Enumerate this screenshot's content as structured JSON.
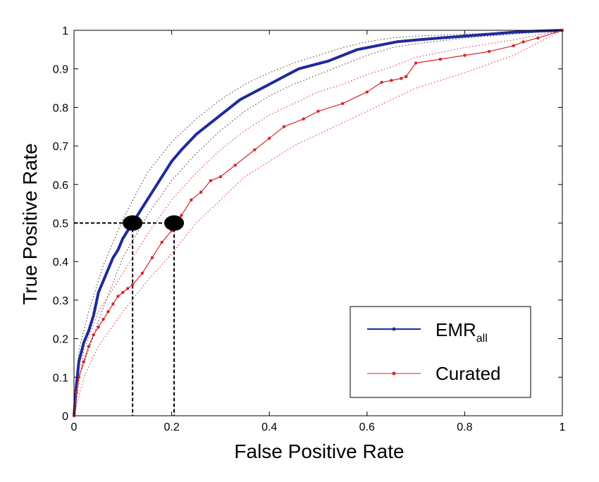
{
  "chart_data": {
    "type": "line",
    "title": "",
    "xlabel": "False Positive Rate",
    "ylabel": "True Positive Rate",
    "xlim": [
      0,
      1
    ],
    "ylim": [
      0,
      1
    ],
    "xticks": [
      "0",
      "0.2",
      "0.4",
      "0.6",
      "0.8",
      "1"
    ],
    "yticks": [
      "0",
      "0.1",
      "0.2",
      "0.3",
      "0.4",
      "0.5",
      "0.6",
      "0.7",
      "0.8",
      "0.9",
      "1"
    ],
    "grid": false,
    "legend_position": "bottom-right",
    "series": [
      {
        "name": "EMR",
        "name_subscript": "all",
        "color": "#1f2a9c",
        "style": "thick-solid",
        "x": [
          0,
          0.005,
          0.01,
          0.02,
          0.03,
          0.04,
          0.05,
          0.06,
          0.07,
          0.08,
          0.09,
          0.1,
          0.11,
          0.12,
          0.14,
          0.16,
          0.18,
          0.2,
          0.22,
          0.25,
          0.28,
          0.31,
          0.34,
          0.37,
          0.4,
          0.43,
          0.46,
          0.49,
          0.52,
          0.55,
          0.58,
          0.62,
          0.66,
          0.7,
          0.75,
          0.8,
          0.85,
          0.9,
          0.95,
          1.0
        ],
        "y": [
          0,
          0.08,
          0.14,
          0.19,
          0.22,
          0.26,
          0.32,
          0.35,
          0.38,
          0.41,
          0.43,
          0.46,
          0.48,
          0.5,
          0.54,
          0.58,
          0.62,
          0.66,
          0.69,
          0.73,
          0.76,
          0.79,
          0.82,
          0.84,
          0.86,
          0.88,
          0.9,
          0.91,
          0.92,
          0.935,
          0.95,
          0.96,
          0.97,
          0.975,
          0.98,
          0.985,
          0.99,
          0.995,
          0.998,
          1.0
        ]
      },
      {
        "name": "Curated",
        "color": "#d7262a",
        "style": "thin-solid-dots",
        "x": [
          0,
          0.005,
          0.01,
          0.02,
          0.03,
          0.04,
          0.05,
          0.06,
          0.07,
          0.08,
          0.09,
          0.1,
          0.11,
          0.12,
          0.14,
          0.16,
          0.18,
          0.2,
          0.21,
          0.22,
          0.24,
          0.26,
          0.28,
          0.3,
          0.33,
          0.37,
          0.4,
          0.43,
          0.47,
          0.5,
          0.55,
          0.6,
          0.63,
          0.65,
          0.67,
          0.68,
          0.7,
          0.75,
          0.8,
          0.85,
          0.9,
          0.92,
          0.95,
          1.0
        ],
        "y": [
          0,
          0.06,
          0.1,
          0.14,
          0.18,
          0.21,
          0.23,
          0.25,
          0.27,
          0.29,
          0.31,
          0.32,
          0.33,
          0.34,
          0.37,
          0.41,
          0.45,
          0.48,
          0.5,
          0.52,
          0.56,
          0.58,
          0.61,
          0.62,
          0.65,
          0.69,
          0.72,
          0.75,
          0.77,
          0.79,
          0.81,
          0.84,
          0.865,
          0.87,
          0.875,
          0.88,
          0.915,
          0.925,
          0.935,
          0.945,
          0.96,
          0.97,
          0.98,
          1.0
        ]
      },
      {
        "role": "confidence-band",
        "of": "EMR",
        "color": "#333333",
        "style": "dotted",
        "x": [
          0,
          0.01,
          0.03,
          0.06,
          0.1,
          0.15,
          0.2,
          0.25,
          0.3,
          0.35,
          0.4,
          0.45,
          0.5,
          0.55,
          0.6,
          0.65,
          0.7,
          0.8,
          0.9,
          1.0
        ],
        "upper": [
          0,
          0.17,
          0.27,
          0.39,
          0.51,
          0.63,
          0.71,
          0.77,
          0.82,
          0.86,
          0.89,
          0.915,
          0.935,
          0.955,
          0.97,
          0.98,
          0.985,
          0.99,
          0.995,
          1.0
        ],
        "lower": [
          0,
          0.1,
          0.17,
          0.28,
          0.41,
          0.52,
          0.61,
          0.68,
          0.74,
          0.79,
          0.83,
          0.86,
          0.885,
          0.91,
          0.935,
          0.955,
          0.965,
          0.98,
          0.99,
          1.0
        ]
      },
      {
        "role": "confidence-band",
        "of": "Curated",
        "color": "#d7262a",
        "style": "dotted",
        "x": [
          0,
          0.02,
          0.05,
          0.1,
          0.15,
          0.2,
          0.25,
          0.3,
          0.35,
          0.4,
          0.45,
          0.5,
          0.55,
          0.6,
          0.65,
          0.7,
          0.8,
          0.9,
          1.0
        ],
        "upper": [
          0,
          0.17,
          0.27,
          0.37,
          0.47,
          0.56,
          0.63,
          0.69,
          0.74,
          0.78,
          0.81,
          0.84,
          0.86,
          0.885,
          0.905,
          0.93,
          0.955,
          0.975,
          1.0
        ],
        "lower": [
          0,
          0.1,
          0.18,
          0.27,
          0.35,
          0.42,
          0.5,
          0.56,
          0.62,
          0.66,
          0.7,
          0.73,
          0.76,
          0.79,
          0.82,
          0.85,
          0.89,
          0.935,
          1.0
        ]
      }
    ],
    "annotations": [
      {
        "type": "marker",
        "x": 0.12,
        "y": 0.5,
        "series": "EMR"
      },
      {
        "type": "marker",
        "x": 0.205,
        "y": 0.5,
        "series": "Curated"
      },
      {
        "type": "dashed-guide",
        "x": 0.12,
        "y": 0.5
      },
      {
        "type": "dashed-guide",
        "x": 0.205,
        "y": 0.5
      }
    ]
  }
}
